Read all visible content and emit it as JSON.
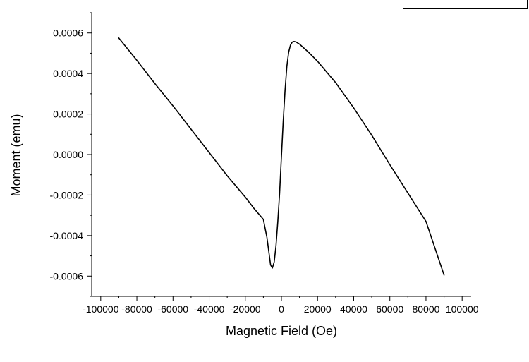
{
  "chart_data": {
    "type": "line",
    "title": "",
    "xlabel": "Magnetic Field (Oe)",
    "ylabel": "Moment (emu)",
    "xlim": [
      -105000,
      105000
    ],
    "ylim": [
      -0.0007,
      0.0007
    ],
    "x_ticks": [
      -100000,
      -80000,
      -60000,
      -40000,
      -20000,
      0,
      20000,
      40000,
      60000,
      80000,
      100000
    ],
    "x_tick_labels": [
      "-100000",
      "-80000",
      "-60000",
      "-40000",
      "-20000",
      "0",
      "20000",
      "40000",
      "60000",
      "80000",
      "100000"
    ],
    "y_ticks": [
      -0.0006,
      -0.0004,
      -0.0002,
      0.0,
      0.0002,
      0.0004,
      0.0006
    ],
    "y_tick_labels": [
      "-0.0006",
      "-0.0004",
      "-0.0002",
      "0.0000",
      "0.0002",
      "0.0004",
      "0.0006"
    ],
    "grid": false,
    "legend": "top-right",
    "line_color": "#000000",
    "series": [
      {
        "x": [
          -90000,
          -80000,
          -70000,
          -60000,
          -50000,
          -40000,
          -30000,
          -20000,
          -15000,
          -10000,
          -8000,
          -6000,
          -5000,
          -4000,
          -3000,
          -2000,
          -1000,
          0,
          1000,
          2000,
          3000,
          4000,
          5000,
          6000,
          7000,
          8000,
          10000,
          15000,
          20000,
          30000,
          40000,
          50000,
          60000,
          70000,
          80000,
          90000
        ],
        "y": [
          0.000575,
          0.000465,
          0.00035,
          0.00024,
          0.000125,
          1e-05,
          -0.000105,
          -0.00021,
          -0.000268,
          -0.00032,
          -0.00041,
          -0.000545,
          -0.00056,
          -0.00053,
          -0.00045,
          -0.00033,
          -0.00019,
          -1e-05,
          0.000165,
          0.000315,
          0.000435,
          0.000505,
          0.00054,
          0.000555,
          0.000558,
          0.000556,
          0.000545,
          0.000505,
          0.00046,
          0.000355,
          0.00023,
          9.5e-05,
          -5e-05,
          -0.00019,
          -0.00033,
          -0.000595
        ]
      }
    ]
  }
}
